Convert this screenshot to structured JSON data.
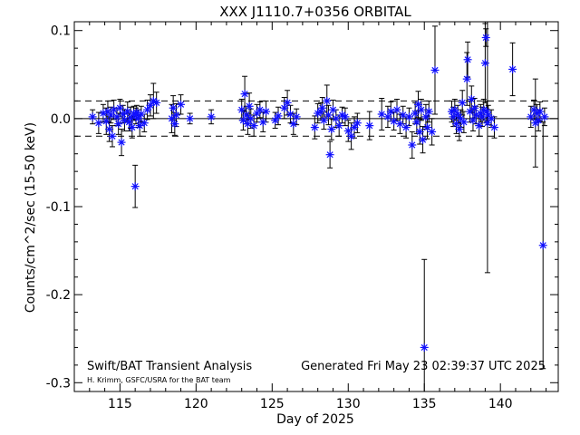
{
  "chart_data": {
    "type": "scatter",
    "title": "XXX J1110.7+0356 ORBITAL",
    "xlabel": "Day of 2025",
    "ylabel": "Counts/cm^2/sec (15-50 keV)",
    "xlim": [
      112,
      143.8
    ],
    "ylim": [
      -0.31,
      0.11
    ],
    "xticks": [
      115,
      120,
      125,
      130,
      135,
      140
    ],
    "yticks": [
      0.1,
      0.0,
      -0.1,
      -0.2,
      -0.3
    ],
    "ytick_labels": [
      "0.1",
      "0.0",
      "-0.1",
      "-0.2",
      "-0.3"
    ],
    "reference_lines": [
      {
        "y": 0.0,
        "style": "solid"
      },
      {
        "y": 0.02,
        "style": "dashed"
      },
      {
        "y": -0.02,
        "style": "dashed"
      }
    ],
    "marker_color": "#1010ff",
    "errorbar_color": "#000000",
    "grid": false,
    "legend": "none",
    "annotations": {
      "left": "Swift/BAT Transient Analysis",
      "right": "Generated Fri May 23 02:39:37 UTC 2025",
      "credit": "H. Krimm, GSFC/USRA for the BAT team"
    },
    "points": [
      {
        "x": 113.2,
        "y": 0.002,
        "err": 0.008
      },
      {
        "x": 113.6,
        "y": -0.005,
        "err": 0.012
      },
      {
        "x": 113.9,
        "y": 0.006,
        "err": 0.01
      },
      {
        "x": 114.1,
        "y": -0.003,
        "err": 0.015
      },
      {
        "x": 114.2,
        "y": 0.008,
        "err": 0.012
      },
      {
        "x": 114.3,
        "y": -0.012,
        "err": 0.014
      },
      {
        "x": 114.4,
        "y": 0.004,
        "err": 0.009
      },
      {
        "x": 114.5,
        "y": -0.02,
        "err": 0.012
      },
      {
        "x": 114.6,
        "y": 0.01,
        "err": 0.011
      },
      {
        "x": 114.8,
        "y": 0.002,
        "err": 0.01
      },
      {
        "x": 114.9,
        "y": -0.006,
        "err": 0.012
      },
      {
        "x": 115.0,
        "y": 0.012,
        "err": 0.01
      },
      {
        "x": 115.1,
        "y": -0.027,
        "err": 0.015
      },
      {
        "x": 115.2,
        "y": 0.005,
        "err": 0.01
      },
      {
        "x": 115.3,
        "y": -0.002,
        "err": 0.012
      },
      {
        "x": 115.5,
        "y": 0.008,
        "err": 0.011
      },
      {
        "x": 115.6,
        "y": -0.004,
        "err": 0.01
      },
      {
        "x": 115.7,
        "y": 0.001,
        "err": 0.012
      },
      {
        "x": 115.8,
        "y": -0.01,
        "err": 0.012
      },
      {
        "x": 115.9,
        "y": 0.006,
        "err": 0.008
      },
      {
        "x": 116.0,
        "y": -0.077,
        "err": 0.024
      },
      {
        "x": 116.05,
        "y": 0.003,
        "err": 0.009
      },
      {
        "x": 116.1,
        "y": 0.007,
        "err": 0.008
      },
      {
        "x": 116.2,
        "y": 0.0,
        "err": 0.01
      },
      {
        "x": 116.3,
        "y": -0.008,
        "err": 0.012
      },
      {
        "x": 116.4,
        "y": 0.005,
        "err": 0.009
      },
      {
        "x": 116.6,
        "y": -0.005,
        "err": 0.01
      },
      {
        "x": 116.8,
        "y": 0.01,
        "err": 0.011
      },
      {
        "x": 117.0,
        "y": 0.015,
        "err": 0.012
      },
      {
        "x": 117.2,
        "y": 0.02,
        "err": 0.02
      },
      {
        "x": 117.4,
        "y": 0.018,
        "err": 0.012
      },
      {
        "x": 118.4,
        "y": 0.0,
        "err": 0.016
      },
      {
        "x": 118.5,
        "y": 0.012,
        "err": 0.014
      },
      {
        "x": 118.6,
        "y": -0.006,
        "err": 0.013
      },
      {
        "x": 118.7,
        "y": 0.004,
        "err": 0.013
      },
      {
        "x": 119.0,
        "y": 0.016,
        "err": 0.011
      },
      {
        "x": 119.6,
        "y": 0.0,
        "err": 0.006
      },
      {
        "x": 121.0,
        "y": 0.002,
        "err": 0.008
      },
      {
        "x": 123.0,
        "y": 0.01,
        "err": 0.012
      },
      {
        "x": 123.1,
        "y": -0.002,
        "err": 0.011
      },
      {
        "x": 123.2,
        "y": 0.028,
        "err": 0.02
      },
      {
        "x": 123.3,
        "y": 0.004,
        "err": 0.01
      },
      {
        "x": 123.4,
        "y": -0.006,
        "err": 0.012
      },
      {
        "x": 123.5,
        "y": 0.014,
        "err": 0.015
      },
      {
        "x": 123.6,
        "y": 0.0,
        "err": 0.011
      },
      {
        "x": 123.8,
        "y": -0.008,
        "err": 0.012
      },
      {
        "x": 124.0,
        "y": 0.006,
        "err": 0.01
      },
      {
        "x": 124.2,
        "y": 0.01,
        "err": 0.009
      },
      {
        "x": 124.4,
        "y": -0.004,
        "err": 0.011
      },
      {
        "x": 124.6,
        "y": 0.008,
        "err": 0.012
      },
      {
        "x": 125.2,
        "y": -0.002,
        "err": 0.009
      },
      {
        "x": 125.4,
        "y": 0.003,
        "err": 0.01
      },
      {
        "x": 125.8,
        "y": 0.012,
        "err": 0.012
      },
      {
        "x": 126.0,
        "y": 0.018,
        "err": 0.014
      },
      {
        "x": 126.2,
        "y": 0.005,
        "err": 0.01
      },
      {
        "x": 126.4,
        "y": -0.006,
        "err": 0.012
      },
      {
        "x": 126.6,
        "y": 0.002,
        "err": 0.009
      },
      {
        "x": 127.8,
        "y": -0.01,
        "err": 0.013
      },
      {
        "x": 128.0,
        "y": 0.006,
        "err": 0.011
      },
      {
        "x": 128.2,
        "y": 0.008,
        "err": 0.01
      },
      {
        "x": 128.3,
        "y": 0.012,
        "err": 0.012
      },
      {
        "x": 128.4,
        "y": -0.002,
        "err": 0.01
      },
      {
        "x": 128.6,
        "y": 0.02,
        "err": 0.018
      },
      {
        "x": 128.7,
        "y": 0.004,
        "err": 0.011
      },
      {
        "x": 128.8,
        "y": -0.041,
        "err": 0.015
      },
      {
        "x": 128.9,
        "y": -0.012,
        "err": 0.012
      },
      {
        "x": 129.0,
        "y": 0.01,
        "err": 0.011
      },
      {
        "x": 129.2,
        "y": 0.0,
        "err": 0.01
      },
      {
        "x": 129.4,
        "y": -0.008,
        "err": 0.012
      },
      {
        "x": 129.6,
        "y": 0.004,
        "err": 0.009
      },
      {
        "x": 129.8,
        "y": 0.002,
        "err": 0.01
      },
      {
        "x": 130.0,
        "y": -0.014,
        "err": 0.012
      },
      {
        "x": 130.2,
        "y": -0.02,
        "err": 0.015
      },
      {
        "x": 130.4,
        "y": -0.01,
        "err": 0.012
      },
      {
        "x": 130.6,
        "y": -0.005,
        "err": 0.011
      },
      {
        "x": 131.4,
        "y": -0.008,
        "err": 0.016
      },
      {
        "x": 132.2,
        "y": 0.005,
        "err": 0.018
      },
      {
        "x": 132.6,
        "y": 0.002,
        "err": 0.012
      },
      {
        "x": 132.8,
        "y": 0.008,
        "err": 0.011
      },
      {
        "x": 133.0,
        "y": -0.003,
        "err": 0.01
      },
      {
        "x": 133.2,
        "y": 0.01,
        "err": 0.012
      },
      {
        "x": 133.4,
        "y": -0.006,
        "err": 0.011
      },
      {
        "x": 133.6,
        "y": 0.004,
        "err": 0.01
      },
      {
        "x": 133.8,
        "y": -0.01,
        "err": 0.012
      },
      {
        "x": 134.0,
        "y": 0.002,
        "err": 0.01
      },
      {
        "x": 134.2,
        "y": -0.03,
        "err": 0.015
      },
      {
        "x": 134.4,
        "y": 0.006,
        "err": 0.012
      },
      {
        "x": 134.5,
        "y": -0.004,
        "err": 0.013
      },
      {
        "x": 134.6,
        "y": 0.016,
        "err": 0.015
      },
      {
        "x": 134.7,
        "y": -0.015,
        "err": 0.014
      },
      {
        "x": 134.8,
        "y": 0.01,
        "err": 0.012
      },
      {
        "x": 134.9,
        "y": -0.024,
        "err": 0.015
      },
      {
        "x": 135.0,
        "y": -0.26,
        "err": 0.1
      },
      {
        "x": 135.1,
        "y": 0.002,
        "err": 0.014
      },
      {
        "x": 135.2,
        "y": -0.01,
        "err": 0.013
      },
      {
        "x": 135.3,
        "y": 0.008,
        "err": 0.012
      },
      {
        "x": 135.5,
        "y": -0.015,
        "err": 0.015
      },
      {
        "x": 135.7,
        "y": 0.055,
        "err": 0.05
      },
      {
        "x": 136.8,
        "y": 0.008,
        "err": 0.012
      },
      {
        "x": 136.9,
        "y": 0.002,
        "err": 0.011
      },
      {
        "x": 137.0,
        "y": 0.01,
        "err": 0.012
      },
      {
        "x": 137.1,
        "y": -0.006,
        "err": 0.011
      },
      {
        "x": 137.2,
        "y": 0.005,
        "err": 0.01
      },
      {
        "x": 137.3,
        "y": -0.012,
        "err": 0.013
      },
      {
        "x": 137.4,
        "y": 0.0,
        "err": 0.01
      },
      {
        "x": 137.5,
        "y": 0.018,
        "err": 0.014
      },
      {
        "x": 137.6,
        "y": -0.004,
        "err": 0.012
      },
      {
        "x": 137.8,
        "y": 0.045,
        "err": 0.03
      },
      {
        "x": 137.85,
        "y": 0.067,
        "err": 0.02
      },
      {
        "x": 138.0,
        "y": 0.008,
        "err": 0.012
      },
      {
        "x": 138.1,
        "y": 0.022,
        "err": 0.015
      },
      {
        "x": 138.2,
        "y": -0.002,
        "err": 0.012
      },
      {
        "x": 138.3,
        "y": 0.012,
        "err": 0.011
      },
      {
        "x": 138.4,
        "y": 0.004,
        "err": 0.01
      },
      {
        "x": 138.6,
        "y": -0.008,
        "err": 0.012
      },
      {
        "x": 138.7,
        "y": 0.006,
        "err": 0.01
      },
      {
        "x": 138.8,
        "y": 0.002,
        "err": 0.011
      },
      {
        "x": 138.9,
        "y": 0.01,
        "err": 0.012
      },
      {
        "x": 139.0,
        "y": 0.063,
        "err": 0.045
      },
      {
        "x": 139.05,
        "y": 0.092,
        "err": 0.01
      },
      {
        "x": 139.1,
        "y": 0.008,
        "err": 0.012
      },
      {
        "x": 139.15,
        "y": -0.005,
        "err": 0.17
      },
      {
        "x": 139.2,
        "y": 0.004,
        "err": 0.011
      },
      {
        "x": 139.4,
        "y": 0.0,
        "err": 0.01
      },
      {
        "x": 139.6,
        "y": -0.01,
        "err": 0.012
      },
      {
        "x": 140.8,
        "y": 0.056,
        "err": 0.03
      },
      {
        "x": 142.0,
        "y": 0.002,
        "err": 0.012
      },
      {
        "x": 142.2,
        "y": 0.01,
        "err": 0.011
      },
      {
        "x": 142.3,
        "y": -0.005,
        "err": 0.05
      },
      {
        "x": 142.4,
        "y": 0.006,
        "err": 0.01
      },
      {
        "x": 142.5,
        "y": -0.002,
        "err": 0.012
      },
      {
        "x": 142.6,
        "y": 0.008,
        "err": 0.011
      },
      {
        "x": 142.8,
        "y": -0.144,
        "err": 0.14
      },
      {
        "x": 142.9,
        "y": 0.002,
        "err": 0.01
      }
    ]
  }
}
